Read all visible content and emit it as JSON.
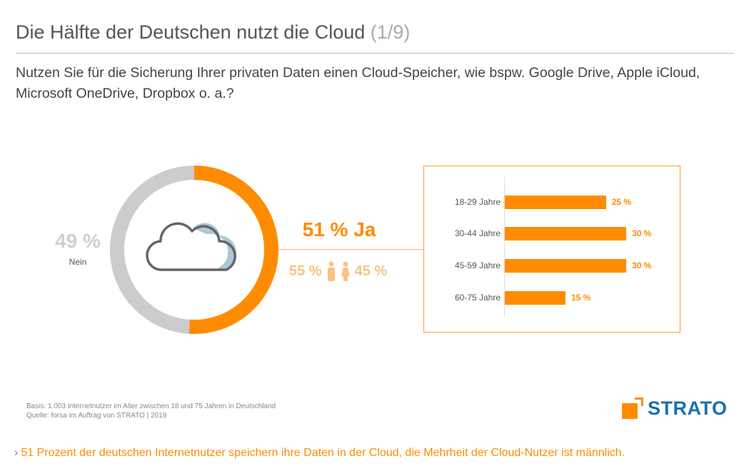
{
  "header": {
    "title": "Die Hälfte der Deutschen nutzt die Cloud",
    "page": "(1/9)"
  },
  "question": "Nutzen Sie für die Sicherung Ihrer privaten Daten einen Cloud-Speicher, wie bspw. Google Drive, Apple iCloud, Microsoft OneDrive, Dropbox o. a.?",
  "chart_data": [
    {
      "type": "pie",
      "variant": "donut",
      "categories": [
        "Ja",
        "Nein"
      ],
      "values": [
        51,
        49
      ],
      "labels": {
        "ja": "51 %  Ja",
        "nein_pct": "49 %",
        "nein": "Nein"
      },
      "colors": [
        "#ff8c00",
        "#cccccc"
      ],
      "gender": {
        "male_pct": "55 %",
        "female_pct": "45 %",
        "male": 55,
        "female": 45
      }
    },
    {
      "type": "bar",
      "orientation": "horizontal",
      "categories": [
        "18-29 Jahre",
        "30-44 Jahre",
        "45-59 Jahre",
        "60-75 Jahre"
      ],
      "values": [
        25,
        30,
        30,
        15
      ],
      "value_labels": [
        "25 %",
        "30 %",
        "30 %",
        "15 %"
      ],
      "color": "#ff8c00"
    }
  ],
  "footer": {
    "basis": "Basis: 1.003 Internetnutzer im Alter zwischen 18 und 75 Jahren in Deutschland",
    "quelle": "Quelle: forsa im Auftrag von STRATO | 2019",
    "logo": "STRATO",
    "footnote": "51 Prozent der deutschen Internetnutzer speichern ihre Daten in der Cloud, die Mehrheit der Cloud-Nutzer ist männlich."
  }
}
